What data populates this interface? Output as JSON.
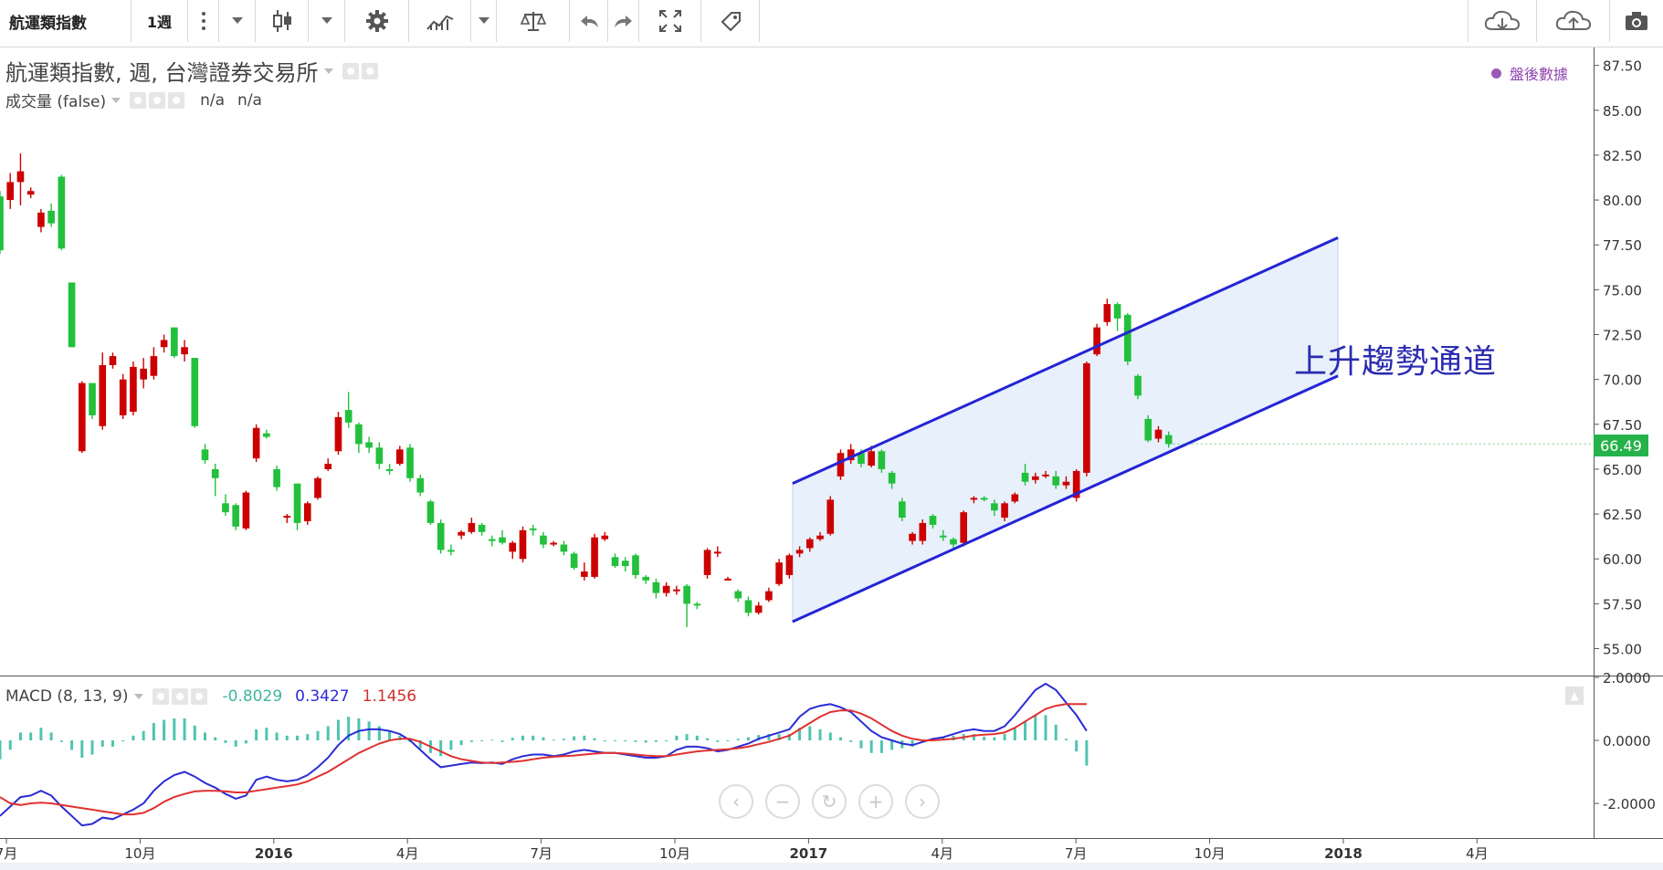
{
  "toolbar": {
    "symbol": "航運類指數",
    "interval": "1週",
    "icons": [
      "more-vertical-icon",
      "candlestick-icon",
      "dropdown-icon",
      "gear-icon",
      "indicator-icon",
      "dropdown-icon",
      "compare-icon",
      "undo-icon",
      "redo-icon",
      "fullscreen-icon",
      "tag-icon",
      "cloud-download-icon",
      "cloud-upload-icon",
      "camera-icon"
    ]
  },
  "legend": {
    "title": "航運類指數, 週, 台灣證券交易所",
    "volume_label": "成交量 (false)",
    "volume_values": [
      "n/a",
      "n/a"
    ],
    "after_hours": "盤後數據"
  },
  "macd_legend": {
    "label": "MACD (8, 13, 9)",
    "hist": "-0.8029",
    "macd": "0.3427",
    "signal": "1.1456"
  },
  "annotation": {
    "text": "上升趨勢通道"
  },
  "last_price": "66.49",
  "colors": {
    "up": "#cc0000",
    "down": "#22c03c",
    "channel": "#2424d6",
    "channel_fill": "#e7f0fb",
    "macd_line": "#2b2bd6",
    "signal_line": "#e03131",
    "histogram": "#4ec4b0",
    "last_price_bg": "#26b24a"
  },
  "nav_buttons": [
    "chevron-left-icon",
    "zoom-out-icon",
    "reset-icon",
    "zoom-in-icon",
    "chevron-right-icon"
  ],
  "chart_data": [
    {
      "type": "candlestick",
      "title": "航運類指數, 週, 台灣證券交易所",
      "ylim": [
        53.5,
        88.5
      ],
      "y_ticks": [
        87.5,
        85.0,
        82.5,
        80.0,
        77.5,
        75.0,
        72.5,
        70.0,
        67.5,
        65.0,
        62.5,
        60.0,
        57.5,
        55.0
      ],
      "y_tick_labels": [
        "87.50",
        "85.00",
        "82.50",
        "80.00",
        "77.50",
        "75.00",
        "72.50",
        "70.00",
        "67.50",
        "65.00",
        "62.50",
        "60.00",
        "57.50",
        "55.00"
      ],
      "x_ticks": [
        {
          "label": "7月",
          "x": 2015.5
        },
        {
          "label": "10月",
          "x": 2015.75
        },
        {
          "label": "2016",
          "x": 2016.0
        },
        {
          "label": "4月",
          "x": 2016.25
        },
        {
          "label": "7月",
          "x": 2016.5
        },
        {
          "label": "10月",
          "x": 2016.75
        },
        {
          "label": "2017",
          "x": 2017.0
        },
        {
          "label": "4月",
          "x": 2017.25
        },
        {
          "label": "7月",
          "x": 2017.5
        },
        {
          "label": "10月",
          "x": 2017.75
        },
        {
          "label": "2018",
          "x": 2018.0
        },
        {
          "label": "4月",
          "x": 2018.25
        }
      ],
      "x_range": [
        2015.488,
        2018.468
      ],
      "week_step": 0.01917,
      "first_week": 2015.488,
      "candles": [
        [
          80.2,
          77.2,
          80.5,
          77.0
        ],
        [
          80.0,
          81.0,
          81.5,
          79.5
        ],
        [
          81.0,
          81.6,
          82.6,
          79.7
        ],
        [
          80.3,
          80.5,
          80.7,
          80.1
        ],
        [
          78.5,
          79.3,
          79.5,
          78.2
        ],
        [
          79.4,
          78.7,
          79.8,
          78.5
        ],
        [
          81.3,
          77.3,
          81.4,
          77.2
        ],
        [
          75.4,
          71.8,
          75.4,
          71.8
        ],
        [
          66.0,
          69.8,
          69.9,
          65.9
        ],
        [
          69.8,
          68.0,
          69.8,
          67.8
        ],
        [
          67.4,
          70.8,
          71.5,
          67.2
        ],
        [
          70.8,
          71.3,
          71.5,
          70.6
        ],
        [
          68.0,
          70.0,
          70.3,
          67.8
        ],
        [
          68.2,
          70.7,
          71.0,
          68.0
        ],
        [
          70.0,
          70.6,
          71.2,
          69.5
        ],
        [
          70.2,
          71.3,
          71.8,
          70.0
        ],
        [
          71.8,
          72.2,
          72.5,
          71.5
        ],
        [
          72.9,
          71.3,
          72.9,
          71.2
        ],
        [
          71.4,
          71.8,
          72.2,
          71.0
        ],
        [
          71.2,
          67.4,
          71.2,
          67.3
        ],
        [
          66.1,
          65.5,
          66.4,
          65.3
        ],
        [
          65.0,
          64.5,
          65.3,
          63.5
        ],
        [
          63.1,
          62.6,
          63.6,
          62.4
        ],
        [
          63.0,
          61.8,
          63.1,
          61.6
        ],
        [
          61.7,
          63.7,
          63.8,
          61.6
        ],
        [
          65.6,
          67.3,
          67.5,
          65.4
        ],
        [
          67.0,
          66.8,
          67.2,
          66.7
        ],
        [
          65.0,
          64.0,
          65.2,
          63.8
        ],
        [
          62.3,
          62.4,
          62.5,
          62.0
        ],
        [
          64.2,
          62.0,
          64.2,
          61.6
        ],
        [
          62.1,
          63.1,
          63.2,
          61.9
        ],
        [
          63.4,
          64.5,
          64.6,
          63.3
        ],
        [
          65.0,
          65.3,
          65.6,
          64.9
        ],
        [
          66.0,
          67.9,
          68.2,
          65.8
        ],
        [
          68.3,
          67.6,
          69.3,
          67.3
        ],
        [
          67.5,
          66.4,
          67.6,
          65.9
        ],
        [
          66.5,
          66.2,
          66.8,
          65.9
        ],
        [
          66.2,
          65.3,
          66.5,
          65.0
        ],
        [
          65.0,
          64.9,
          65.3,
          64.7
        ],
        [
          65.3,
          66.1,
          66.3,
          65.2
        ],
        [
          66.2,
          64.5,
          66.4,
          64.3
        ],
        [
          64.5,
          63.7,
          64.7,
          63.5
        ],
        [
          63.2,
          62.0,
          63.3,
          61.9
        ],
        [
          62.0,
          60.5,
          62.2,
          60.3
        ],
        [
          60.5,
          60.4,
          60.8,
          60.2
        ],
        [
          61.3,
          61.5,
          61.6,
          61.1
        ],
        [
          61.5,
          62.0,
          62.3,
          61.4
        ],
        [
          61.9,
          61.5,
          62.0,
          61.3
        ],
        [
          61.1,
          61.0,
          61.3,
          60.7
        ],
        [
          61.2,
          60.9,
          61.6,
          60.8
        ],
        [
          60.4,
          60.9,
          61.0,
          60.0
        ],
        [
          60.0,
          61.6,
          61.8,
          59.8
        ],
        [
          61.7,
          61.6,
          61.9,
          61.3
        ],
        [
          61.3,
          60.8,
          61.5,
          60.6
        ],
        [
          60.8,
          60.9,
          61.0,
          60.7
        ],
        [
          60.8,
          60.4,
          61.0,
          60.2
        ],
        [
          60.3,
          59.5,
          60.4,
          59.4
        ],
        [
          59.0,
          59.3,
          59.8,
          58.8
        ],
        [
          59.0,
          61.2,
          61.4,
          58.9
        ],
        [
          61.1,
          61.3,
          61.5,
          61.0
        ],
        [
          60.1,
          59.6,
          60.3,
          59.5
        ],
        [
          59.9,
          59.6,
          60.1,
          59.3
        ],
        [
          60.2,
          59.1,
          60.3,
          58.9
        ],
        [
          59.0,
          58.8,
          59.1,
          58.6
        ],
        [
          58.7,
          58.1,
          58.9,
          57.8
        ],
        [
          58.1,
          58.5,
          58.7,
          57.9
        ],
        [
          58.3,
          58.3,
          58.5,
          58.0
        ],
        [
          58.5,
          57.5,
          58.6,
          56.2
        ],
        [
          57.5,
          57.4,
          57.6,
          57.2
        ],
        [
          59.1,
          60.5,
          60.6,
          58.9
        ],
        [
          60.3,
          60.4,
          60.7,
          60.1
        ],
        [
          58.9,
          58.9,
          59.0,
          58.8
        ],
        [
          58.2,
          57.8,
          58.3,
          57.6
        ],
        [
          57.7,
          57.0,
          57.9,
          56.8
        ],
        [
          57.0,
          57.4,
          57.6,
          56.9
        ],
        [
          57.7,
          58.2,
          58.4,
          57.6
        ],
        [
          58.6,
          59.8,
          60.0,
          58.5
        ],
        [
          59.1,
          60.2,
          60.3,
          58.9
        ],
        [
          60.3,
          60.5,
          60.7,
          60.1
        ],
        [
          60.6,
          61.1,
          61.2,
          60.4
        ],
        [
          61.1,
          61.3,
          61.5,
          61.0
        ],
        [
          61.4,
          63.3,
          63.5,
          61.3
        ],
        [
          64.6,
          65.9,
          66.1,
          64.4
        ],
        [
          65.5,
          66.1,
          66.4,
          65.3
        ],
        [
          65.9,
          65.3,
          66.1,
          65.1
        ],
        [
          65.2,
          66.0,
          66.3,
          65.1
        ],
        [
          66.0,
          65.0,
          66.1,
          64.8
        ],
        [
          64.8,
          64.2,
          64.9,
          63.9
        ],
        [
          63.2,
          62.3,
          63.4,
          62.1
        ],
        [
          61.0,
          61.4,
          61.5,
          60.8
        ],
        [
          61.0,
          62.0,
          62.2,
          60.8
        ],
        [
          62.4,
          61.9,
          62.5,
          61.7
        ],
        [
          61.3,
          61.2,
          61.6,
          61.0
        ],
        [
          61.1,
          60.8,
          61.2,
          60.6
        ],
        [
          60.9,
          62.6,
          62.7,
          60.7
        ],
        [
          63.3,
          63.4,
          63.5,
          63.1
        ],
        [
          63.4,
          63.3,
          63.5,
          63.2
        ],
        [
          63.1,
          62.7,
          63.3,
          62.4
        ],
        [
          62.3,
          63.1,
          63.2,
          62.1
        ],
        [
          63.2,
          63.6,
          63.7,
          63.1
        ],
        [
          64.8,
          64.3,
          65.3,
          64.1
        ],
        [
          64.4,
          64.6,
          64.8,
          64.2
        ],
        [
          64.6,
          64.7,
          64.9,
          64.5
        ],
        [
          64.6,
          64.1,
          64.9,
          63.9
        ],
        [
          64.1,
          64.3,
          64.6,
          63.9
        ],
        [
          63.4,
          64.9,
          65.0,
          63.2
        ],
        [
          64.8,
          70.9,
          71.0,
          64.6
        ],
        [
          71.4,
          72.9,
          73.1,
          71.3
        ],
        [
          73.2,
          74.2,
          74.5,
          73.0
        ],
        [
          74.2,
          73.4,
          74.3,
          72.7
        ],
        [
          73.6,
          71.0,
          73.7,
          70.8
        ],
        [
          70.2,
          69.1,
          70.3,
          68.9
        ],
        [
          67.8,
          66.6,
          68.0,
          66.5
        ],
        [
          66.7,
          67.2,
          67.4,
          66.5
        ],
        [
          66.9,
          66.4,
          67.1,
          66.2
        ]
      ],
      "channel": {
        "upper": [
          [
            2016.97,
            64.2
          ],
          [
            2017.99,
            77.9
          ]
        ],
        "lower": [
          [
            2016.97,
            56.5
          ],
          [
            2017.99,
            70.2
          ]
        ]
      }
    },
    {
      "type": "line",
      "title": "MACD (8, 13, 9)",
      "ylim": [
        -3.1,
        2.0
      ],
      "y_ticks": [
        2.0,
        0.0,
        -2.0
      ],
      "y_tick_labels": [
        "2.0000",
        "0.0000",
        "-2.0000"
      ],
      "series": [
        {
          "name": "MACD",
          "values": [
            -2.4,
            -2.1,
            -1.8,
            -1.75,
            -1.6,
            -1.75,
            -2.1,
            -2.4,
            -2.7,
            -2.65,
            -2.45,
            -2.5,
            -2.35,
            -2.2,
            -2.0,
            -1.6,
            -1.3,
            -1.1,
            -1.0,
            -1.15,
            -1.35,
            -1.5,
            -1.7,
            -1.85,
            -1.75,
            -1.25,
            -1.15,
            -1.25,
            -1.3,
            -1.25,
            -1.1,
            -0.85,
            -0.55,
            -0.15,
            0.15,
            0.3,
            0.35,
            0.35,
            0.3,
            0.2,
            0.0,
            -0.3,
            -0.6,
            -0.85,
            -0.8,
            -0.75,
            -0.7,
            -0.72,
            -0.7,
            -0.75,
            -0.6,
            -0.5,
            -0.45,
            -0.45,
            -0.5,
            -0.45,
            -0.35,
            -0.3,
            -0.35,
            -0.4,
            -0.4,
            -0.45,
            -0.5,
            -0.55,
            -0.55,
            -0.5,
            -0.3,
            -0.2,
            -0.2,
            -0.25,
            -0.35,
            -0.3,
            -0.2,
            -0.1,
            0.05,
            0.15,
            0.25,
            0.35,
            0.75,
            1.0,
            1.1,
            1.15,
            1.05,
            0.9,
            0.6,
            0.3,
            0.1,
            0.0,
            -0.1,
            -0.15,
            -0.05,
            0.05,
            0.1,
            0.2,
            0.3,
            0.35,
            0.3,
            0.3,
            0.45,
            0.8,
            1.2,
            1.6,
            1.8,
            1.6,
            1.2,
            0.8,
            0.3
          ],
          "color": "#2b2bd6"
        },
        {
          "name": "Signal",
          "values": [
            -1.8,
            -2.0,
            -2.05,
            -2.0,
            -1.98,
            -2.0,
            -2.05,
            -2.1,
            -2.15,
            -2.2,
            -2.25,
            -2.3,
            -2.35,
            -2.35,
            -2.3,
            -2.15,
            -1.95,
            -1.8,
            -1.7,
            -1.62,
            -1.6,
            -1.6,
            -1.62,
            -1.65,
            -1.65,
            -1.6,
            -1.55,
            -1.5,
            -1.45,
            -1.4,
            -1.3,
            -1.15,
            -1.0,
            -0.8,
            -0.6,
            -0.4,
            -0.25,
            -0.1,
            0.0,
            0.05,
            0.05,
            -0.05,
            -0.2,
            -0.35,
            -0.5,
            -0.6,
            -0.65,
            -0.7,
            -0.72,
            -0.7,
            -0.68,
            -0.65,
            -0.6,
            -0.55,
            -0.52,
            -0.5,
            -0.48,
            -0.45,
            -0.42,
            -0.4,
            -0.4,
            -0.42,
            -0.45,
            -0.48,
            -0.5,
            -0.5,
            -0.45,
            -0.4,
            -0.35,
            -0.32,
            -0.3,
            -0.28,
            -0.25,
            -0.2,
            -0.12,
            -0.05,
            0.05,
            0.15,
            0.35,
            0.55,
            0.75,
            0.9,
            0.95,
            0.95,
            0.85,
            0.7,
            0.5,
            0.3,
            0.15,
            0.05,
            0.0,
            0.0,
            0.02,
            0.05,
            0.1,
            0.15,
            0.18,
            0.2,
            0.25,
            0.4,
            0.6,
            0.8,
            1.0,
            1.1,
            1.15,
            1.15,
            1.15
          ],
          "color": "#e03131"
        }
      ],
      "histogram": [
        -0.6,
        -0.3,
        0.25,
        0.25,
        0.4,
        0.25,
        -0.05,
        -0.3,
        -0.55,
        -0.45,
        -0.2,
        -0.2,
        0.0,
        0.15,
        0.3,
        0.55,
        0.65,
        0.7,
        0.7,
        0.47,
        0.25,
        0.1,
        -0.08,
        -0.2,
        -0.1,
        0.35,
        0.4,
        0.25,
        0.15,
        0.15,
        0.2,
        0.3,
        0.45,
        0.65,
        0.75,
        0.7,
        0.6,
        0.45,
        0.3,
        0.15,
        -0.05,
        -0.25,
        -0.4,
        -0.5,
        -0.3,
        -0.15,
        -0.05,
        -0.02,
        0.02,
        -0.05,
        0.08,
        0.15,
        0.15,
        0.1,
        0.02,
        0.05,
        0.13,
        0.15,
        0.07,
        0.0,
        0.0,
        -0.03,
        -0.05,
        -0.07,
        -0.05,
        0.0,
        0.15,
        0.2,
        0.15,
        0.07,
        -0.05,
        -0.02,
        0.05,
        0.1,
        0.17,
        0.2,
        0.2,
        0.2,
        0.4,
        0.45,
        0.35,
        0.25,
        0.1,
        -0.05,
        -0.25,
        -0.4,
        -0.4,
        -0.3,
        -0.25,
        -0.2,
        -0.05,
        0.05,
        0.08,
        0.15,
        0.2,
        0.2,
        0.12,
        0.1,
        0.2,
        0.4,
        0.6,
        0.8,
        0.8,
        0.5,
        0.05,
        -0.35,
        -0.8
      ]
    }
  ]
}
